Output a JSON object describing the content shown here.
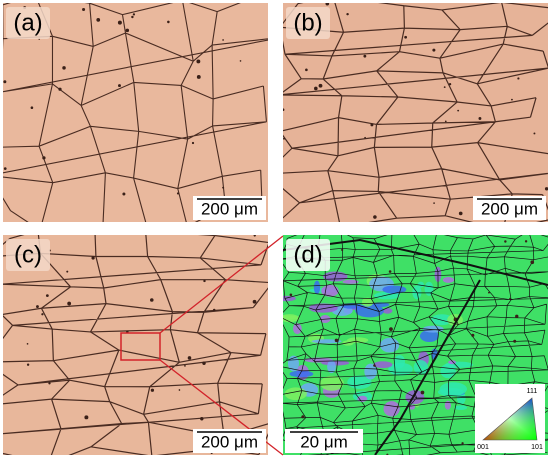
{
  "panels": [
    {
      "label": "(a)",
      "scale_bar": "200 μm"
    },
    {
      "label": "(b)",
      "scale_bar": "200 μm"
    },
    {
      "label": "(c)",
      "scale_bar": "200 μm"
    },
    {
      "label": "(d)",
      "scale_bar": "20 μm",
      "ipf_legend": {
        "top": "111",
        "left": "001",
        "right": "101"
      }
    }
  ]
}
